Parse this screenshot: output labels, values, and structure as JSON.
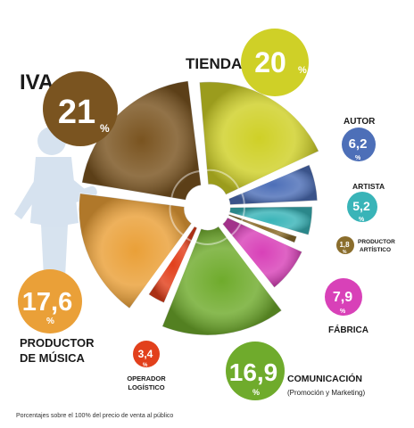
{
  "chart_data": {
    "type": "pie",
    "categories": [
      "Tienda",
      "Autor",
      "Artista",
      "Productor artístico",
      "Fábrica",
      "Comunicación",
      "Operador logístico",
      "Productor de música",
      "IVA"
    ],
    "values": [
      20,
      6.2,
      5.2,
      1.8,
      7.9,
      16.9,
      3.4,
      17.6,
      21
    ],
    "unit": "%",
    "colors": [
      "#cfd027",
      "#4d6fb8",
      "#39b4b8",
      "#8a6d2c",
      "#d841b8",
      "#6fab2c",
      "#e2401c",
      "#eaa038",
      "#7a5420"
    ],
    "slices": [
      {
        "name": "TIENDA",
        "value_text": "20",
        "color": "#cfd027"
      },
      {
        "name": "AUTOR",
        "value_text": "6,2",
        "color": "#4d6fb8"
      },
      {
        "name": "ARTISTA",
        "value_text": "5,2",
        "color": "#39b4b8"
      },
      {
        "name_line1": "PRODUCTOR",
        "name_line2": "ARTÍSTICO",
        "value_text": "1,8",
        "color": "#8a6d2c"
      },
      {
        "name": "FÁBRICA",
        "value_text": "7,9",
        "color": "#d841b8"
      },
      {
        "name": "COMUNICACIÓN",
        "subtitle": "(Promoción y Marketing)",
        "value_text": "16,9",
        "color": "#6fab2c"
      },
      {
        "name_line1": "OPERADOR",
        "name_line2": "LOGÍSTICO",
        "value_text": "3,4",
        "color": "#e2401c"
      },
      {
        "name_line1": "PRODUCTOR",
        "name_line2": "DE MÚSICA",
        "value_text": "17,6",
        "color": "#eaa038"
      },
      {
        "name": "IVA",
        "value_text": "21",
        "color": "#7a5420"
      }
    ],
    "percent_symbol": "%",
    "footnote": "Porcentajes sobre el 100% del precio de venta al público"
  }
}
